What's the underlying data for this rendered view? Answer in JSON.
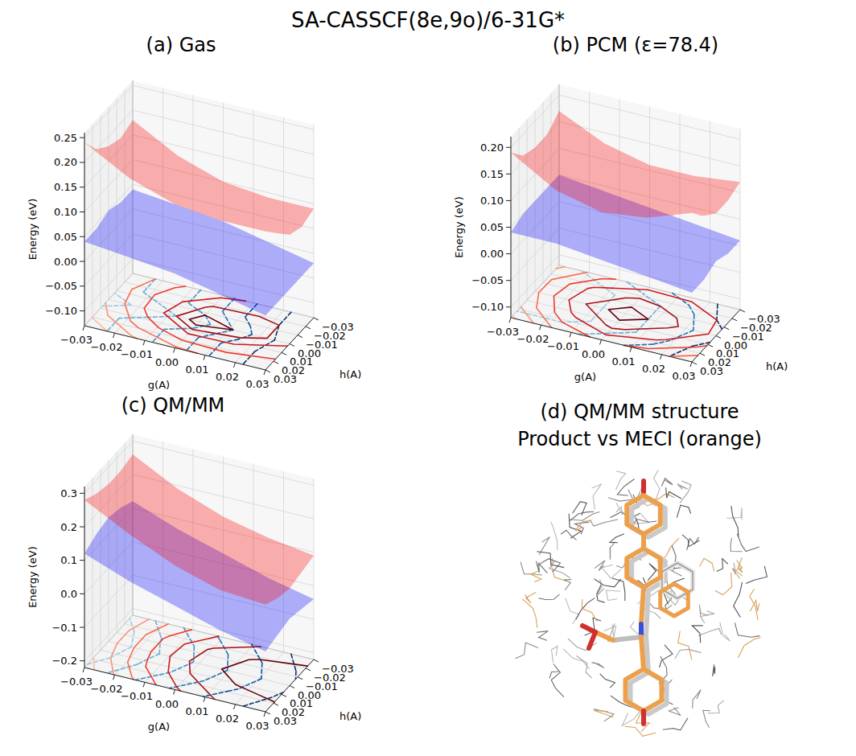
{
  "title": "SA-CASSCF(8e,9o)/6-31G*",
  "chart_data": [
    {
      "type": "surface",
      "title": "(a) Gas",
      "xlabel": "g(A)",
      "ylabel": "h(A)",
      "zlabel": "Energy (eV)",
      "xlim": [
        -0.03,
        0.03
      ],
      "ylim": [
        -0.03,
        0.03
      ],
      "zlim": [
        -0.13,
        0.26
      ],
      "xticks": [
        {
          "value": -0.03,
          "label": "−0.03"
        },
        {
          "value": -0.02,
          "label": "−0.02"
        },
        {
          "value": -0.01,
          "label": "−0.01"
        },
        {
          "value": 0,
          "label": "0.00"
        },
        0.01,
        0.02,
        0.03
      ],
      "yticks": [
        {
          "value": -0.03,
          "label": "−0.03"
        },
        {
          "value": -0.02,
          "label": "−0.02"
        },
        {
          "value": -0.01,
          "label": "−0.01"
        },
        {
          "value": 0,
          "label": "0.00"
        },
        0.01,
        0.02,
        0.03
      ],
      "zticks": [
        {
          "value": -0.1,
          "label": "−0.10"
        },
        {
          "value": -0.05,
          "label": "−0.05"
        },
        {
          "value": 0,
          "label": "0.00"
        },
        0.05,
        {
          "value": 0.1,
          "label": "0.10"
        },
        0.15,
        {
          "value": 0.2,
          "label": "0.20"
        },
        0.25
      ],
      "grid": true,
      "x": [
        -0.03,
        -0.015,
        0,
        0.015,
        0.03
      ],
      "y": [
        -0.03,
        -0.015,
        0,
        0.015,
        0.03
      ],
      "series": [
        {
          "color": "#0000ff",
          "line_style": "dashed",
          "values": [
            [
              0.04,
              0.03,
              0.02,
              0.0,
              -0.02
            ],
            [
              0.04,
              0.03,
              0.02,
              0.0,
              -0.02
            ],
            [
              0.05,
              0.04,
              0.03,
              0.01,
              -0.02
            ],
            [
              0.04,
              0.03,
              0.02,
              0.0,
              -0.02
            ],
            [
              0.04,
              0.03,
              0.02,
              0.0,
              -0.02
            ]
          ],
          "contour_levels": [
            -0.01,
            0.005,
            0.015,
            0.025,
            0.035,
            0.045
          ],
          "colors": [
            "#08306b",
            "#08519c",
            "#2171b5",
            "#4292c6",
            "#6baed6",
            "#9ecae1"
          ]
        },
        {
          "color": "#ff0000",
          "line_style": "solid",
          "values": [
            [
              0.18,
              0.13,
              0.1,
              0.09,
              0.09
            ],
            [
              0.17,
              0.11,
              0.07,
              0.07,
              0.08
            ],
            [
              0.18,
              0.11,
              0.04,
              0.06,
              0.09
            ],
            [
              0.2,
              0.14,
              0.1,
              0.1,
              0.12
            ],
            [
              0.24,
              0.19,
              0.16,
              0.15,
              0.15
            ]
          ],
          "contour_levels": [
            0.055,
            0.075,
            0.095,
            0.125,
            0.155,
            0.185,
            0.215
          ],
          "colors": [
            "#67000d",
            "#a50f15",
            "#cb181d",
            "#ef3b2c",
            "#fb6a4a",
            "#fc9272",
            "#fcbba1"
          ]
        }
      ]
    },
    {
      "type": "surface",
      "title": "(b) PCM (ε=78.4)",
      "xlabel": "g(A)",
      "ylabel": "h(A)",
      "zlabel": "Energy (eV)",
      "xlim": [
        -0.03,
        0.03
      ],
      "ylim": [
        -0.03,
        0.03
      ],
      "zlim": [
        -0.12,
        0.22
      ],
      "xticks": [
        {
          "value": -0.03,
          "label": "−0.03"
        },
        {
          "value": -0.02,
          "label": "−0.02"
        },
        {
          "value": -0.01,
          "label": "−0.01"
        },
        {
          "value": 0,
          "label": "0.00"
        },
        0.01,
        0.02,
        0.03
      ],
      "yticks": [
        {
          "value": -0.03,
          "label": "−0.03"
        },
        {
          "value": -0.02,
          "label": "−0.02"
        },
        {
          "value": -0.01,
          "label": "−0.01"
        },
        {
          "value": 0,
          "label": "0.00"
        },
        0.01,
        0.02,
        0.03
      ],
      "zticks": [
        {
          "value": -0.1,
          "label": "−0.10"
        },
        {
          "value": -0.05,
          "label": "−0.05"
        },
        {
          "value": 0,
          "label": "0.00"
        },
        0.05,
        {
          "value": 0.1,
          "label": "0.10"
        },
        0.15,
        {
          "value": 0.2,
          "label": "0.20"
        }
      ],
      "grid": true,
      "x": [
        -0.03,
        -0.015,
        0,
        0.015,
        0.03
      ],
      "y": [
        -0.03,
        -0.015,
        0,
        0.015,
        0.03
      ],
      "series": [
        {
          "color": "#0000ff",
          "line_style": "dashed",
          "values": [
            [
              0.05,
              0.04,
              0.03,
              0.02,
              0.01
            ],
            [
              0.05,
              0.05,
              0.04,
              0.03,
              0.01
            ],
            [
              0.05,
              0.05,
              0.04,
              0.03,
              0.02
            ],
            [
              0.05,
              0.05,
              0.04,
              0.03,
              0.01
            ],
            [
              0.04,
              0.04,
              0.03,
              0.02,
              0.01
            ]
          ],
          "contour_levels": [
            0.015,
            0.025,
            0.035,
            0.045
          ],
          "colors": [
            "#08306b",
            "#2171b5",
            "#6baed6",
            "#9ecae1"
          ]
        },
        {
          "color": "#ff0000",
          "line_style": "solid",
          "values": [
            [
              0.17,
              0.13,
              0.11,
              0.11,
              0.12
            ],
            [
              0.15,
              0.1,
              0.08,
              0.09,
              0.11
            ],
            [
              0.15,
              0.09,
              0.05,
              0.08,
              0.11
            ],
            [
              0.16,
              0.11,
              0.08,
              0.1,
              0.13
            ],
            [
              0.19,
              0.14,
              0.12,
              0.13,
              0.16
            ]
          ],
          "contour_levels": [
            0.065,
            0.085,
            0.105,
            0.125,
            0.145,
            0.165,
            0.185
          ],
          "colors": [
            "#67000d",
            "#a50f15",
            "#cb181d",
            "#ef3b2c",
            "#fb6a4a",
            "#fc9272",
            "#fcbba1"
          ]
        }
      ]
    },
    {
      "type": "surface",
      "title": "(c) QM/MM",
      "xlabel": "g(A)",
      "ylabel": "h(A)",
      "zlabel": "Energy (eV)",
      "xlim": [
        -0.03,
        0.03
      ],
      "ylim": [
        -0.03,
        0.03
      ],
      "zlim": [
        -0.22,
        0.32
      ],
      "xticks": [
        {
          "value": -0.03,
          "label": "−0.03"
        },
        {
          "value": -0.02,
          "label": "−0.02"
        },
        {
          "value": -0.01,
          "label": "−0.01"
        },
        {
          "value": 0,
          "label": "0.00"
        },
        0.01,
        0.02,
        0.03
      ],
      "yticks": [
        {
          "value": -0.03,
          "label": "−0.03"
        },
        {
          "value": -0.02,
          "label": "−0.02"
        },
        {
          "value": -0.01,
          "label": "−0.01"
        },
        {
          "value": 0,
          "label": "0.00"
        },
        0.01,
        0.02,
        0.03
      ],
      "zticks": [
        {
          "value": -0.2,
          "label": "−0.2"
        },
        {
          "value": -0.1,
          "label": "−0.1"
        },
        {
          "value": 0,
          "label": "0.0"
        },
        0.1,
        0.2,
        0.3
      ],
      "grid": true,
      "x": [
        -0.03,
        -0.015,
        0,
        0.015,
        0.03
      ],
      "y": [
        -0.03,
        -0.015,
        0,
        0.015,
        0.03
      ],
      "series": [
        {
          "color": "#0000ff",
          "line_style": "dashed",
          "values": [
            [
              0.12,
              0.07,
              0.03,
              -0.01,
              -0.04
            ],
            [
              0.14,
              0.09,
              0.05,
              0.01,
              -0.03
            ],
            [
              0.15,
              0.1,
              0.06,
              0.02,
              -0.02
            ],
            [
              0.14,
              0.09,
              0.05,
              0.01,
              -0.03
            ],
            [
              0.12,
              0.07,
              0.03,
              -0.01,
              -0.04
            ]
          ],
          "contour_levels": [
            -0.025,
            0.005,
            0.035,
            0.065,
            0.095,
            0.125
          ],
          "colors": [
            "#08306b",
            "#08519c",
            "#2171b5",
            "#4292c6",
            "#6baed6",
            "#9ecae1"
          ]
        },
        {
          "color": "#ff0000",
          "line_style": "solid",
          "values": [
            [
              0.26,
              0.19,
              0.14,
              0.11,
              0.09
            ],
            [
              0.25,
              0.17,
              0.11,
              0.08,
              0.08
            ],
            [
              0.25,
              0.17,
              0.1,
              0.07,
              0.07
            ],
            [
              0.26,
              0.18,
              0.12,
              0.09,
              0.08
            ],
            [
              0.28,
              0.21,
              0.15,
              0.11,
              0.1
            ]
          ],
          "contour_levels": [
            0.085,
            0.115,
            0.145,
            0.175,
            0.205,
            0.235,
            0.265
          ],
          "colors": [
            "#67000d",
            "#a50f15",
            "#cb181d",
            "#ef3b2c",
            "#fb6a4a",
            "#fc9272",
            "#fcbba1"
          ]
        }
      ]
    }
  ],
  "structure": {
    "title": "(d) QM/MM structure",
    "subtitle": "Product vs MECI (orange)"
  }
}
